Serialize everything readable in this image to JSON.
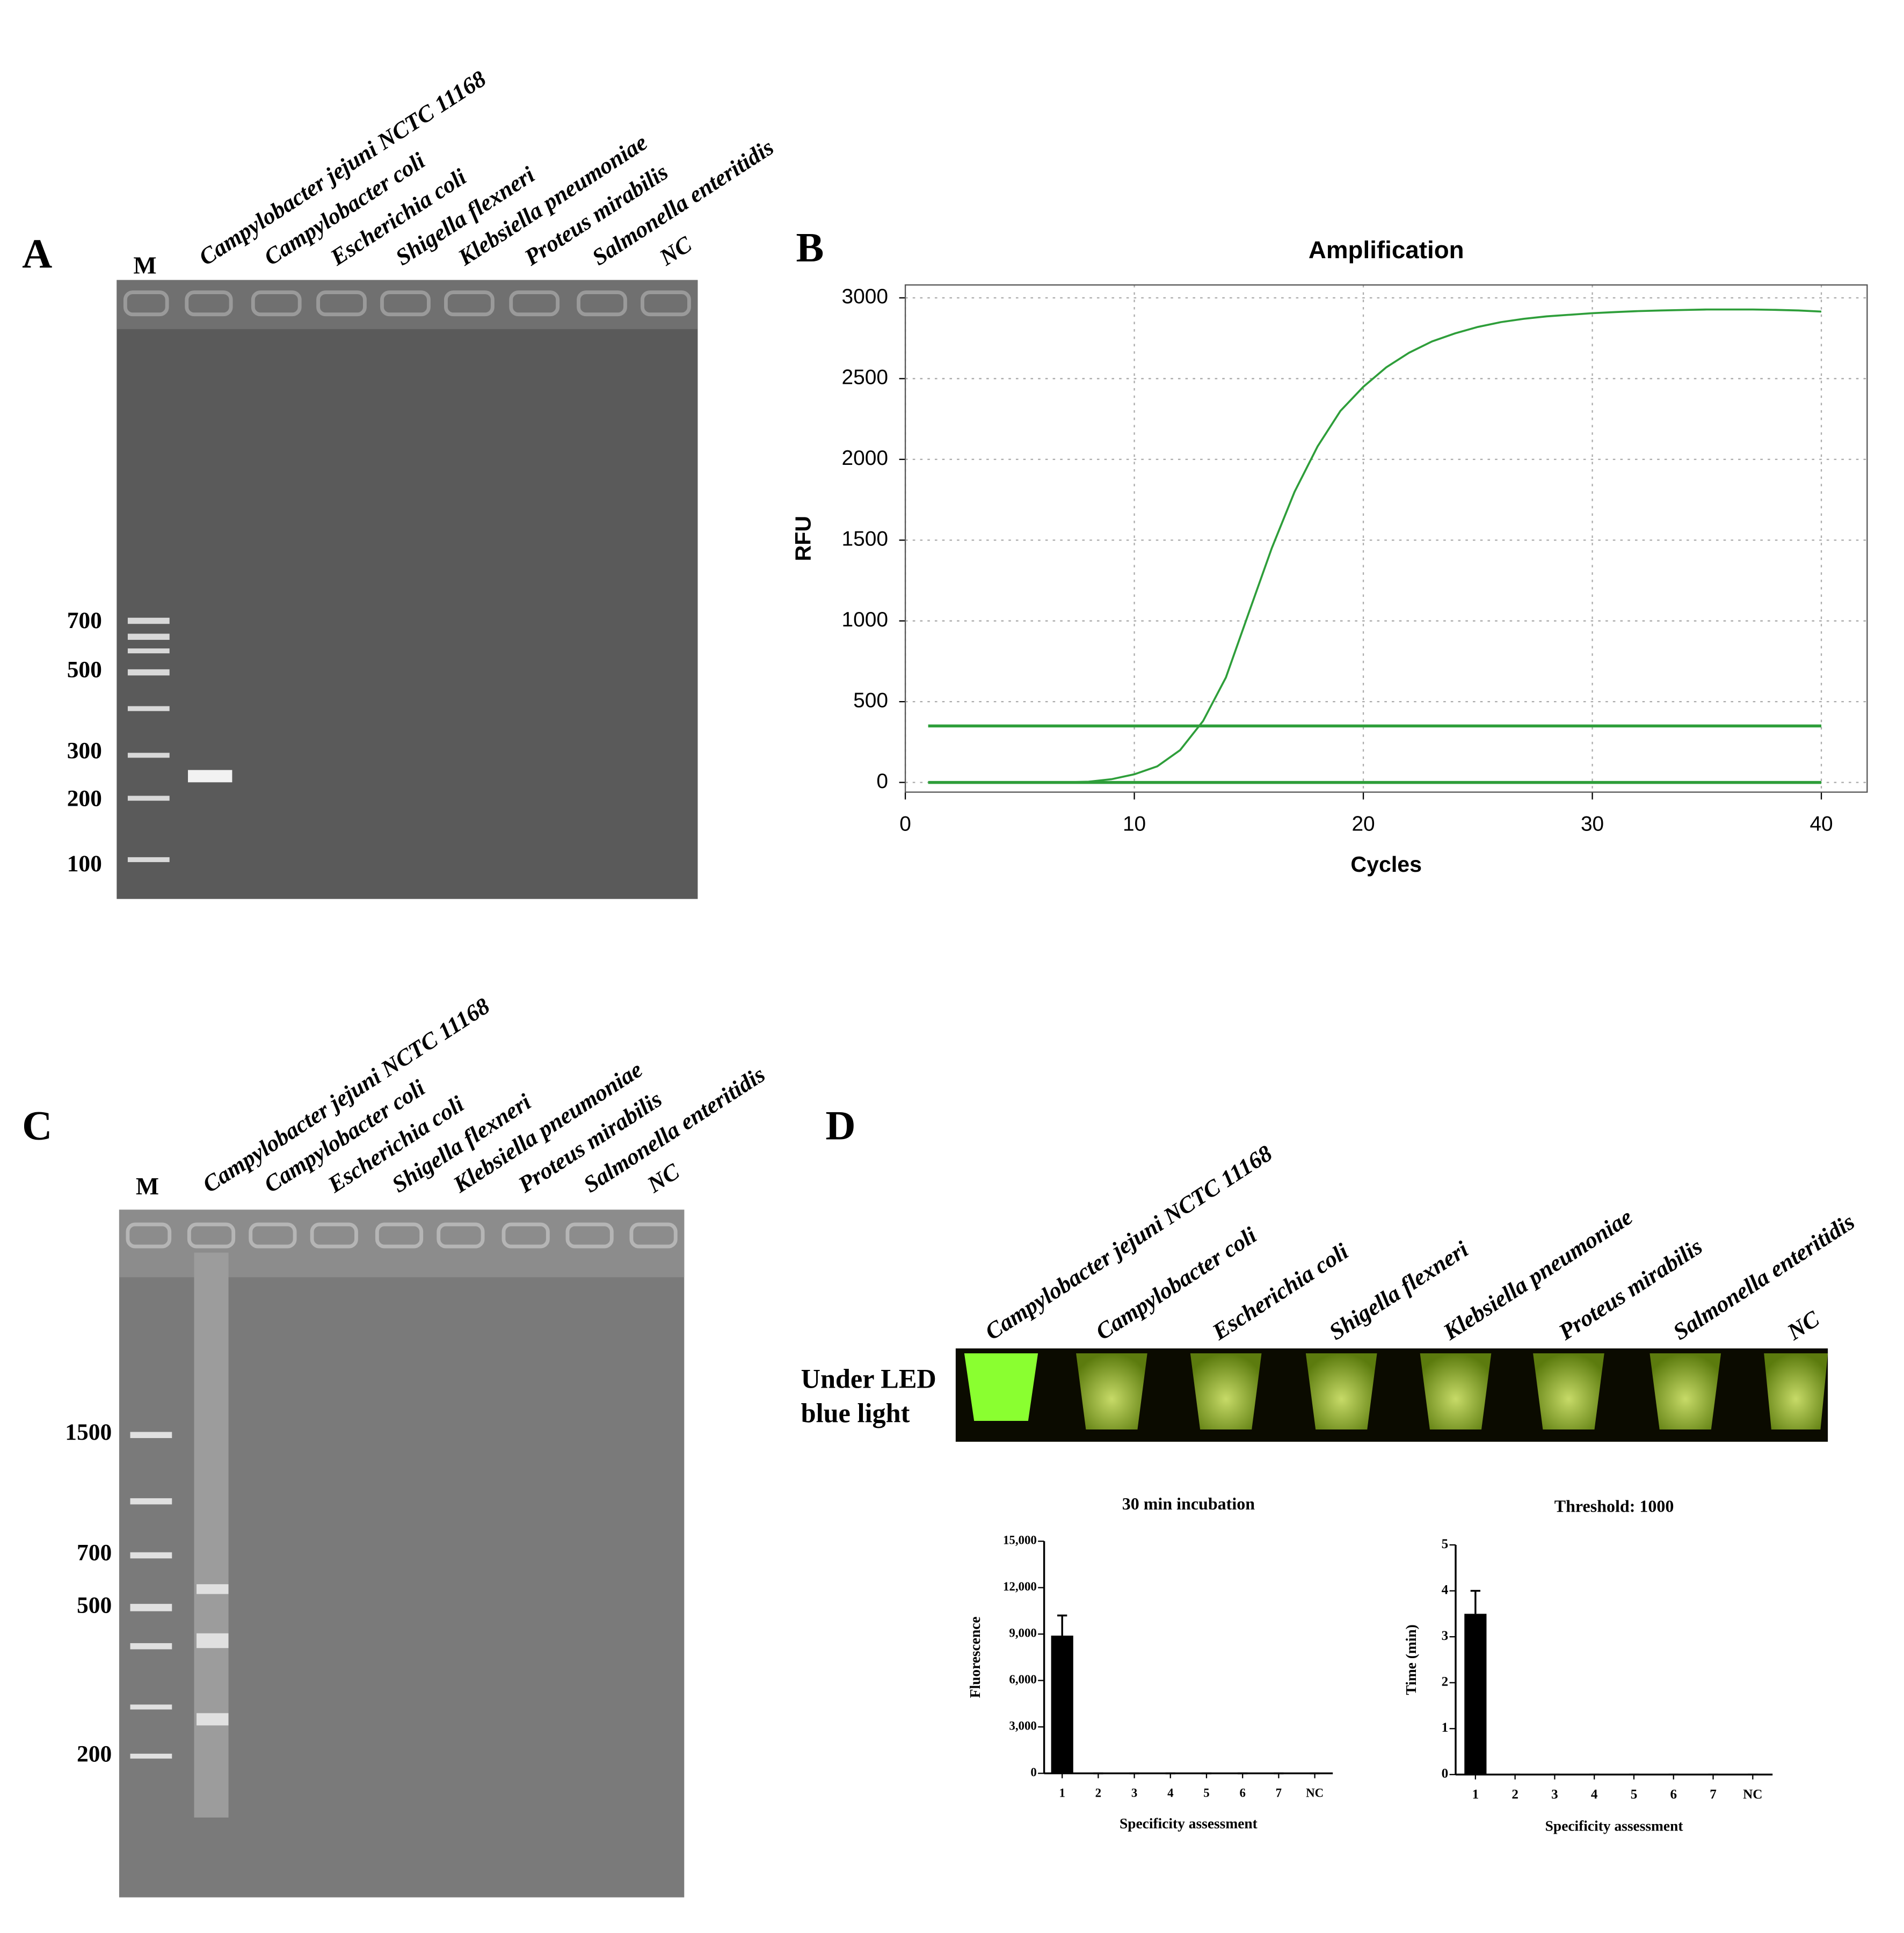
{
  "panels": [
    "A",
    "B",
    "C",
    "D"
  ],
  "gel_a": {
    "marker": "M",
    "lanes": [
      "Campylobacter jejuni NCTC 11168",
      "Campylobacter coli",
      "Escherichia coli",
      "Shigella flexneri",
      "Klebsiella pneumoniae",
      "Proteus mirabilis",
      "Salmonella enteritidis",
      "NC"
    ],
    "sizes": [
      "700",
      "500",
      "300",
      "200",
      "100"
    ]
  },
  "gel_c": {
    "marker": "M",
    "lanes": [
      "Campylobacter jejuni NCTC 11168",
      "Campylobacter coli",
      "Escherichia coli",
      "Shigella flexneri",
      "Klebsiella pneumoniae",
      "Proteus mirabilis",
      "Salmonella enteritidis",
      "NC"
    ],
    "sizes": [
      "1500",
      "700",
      "500",
      "200"
    ]
  },
  "led": {
    "lanes": [
      "Campylobacter jejuni NCTC 11168",
      "Campylobacter coli",
      "Escherichia coli",
      "Shigella flexneri",
      "Klebsiella pneumoniae",
      "Proteus mirabilis",
      "Salmonella enteritidis",
      "NC"
    ],
    "caption": [
      "Under LED",
      "blue light"
    ]
  },
  "chart_data": [
    {
      "type": "line",
      "title": "Amplification",
      "x_label": "Cycles",
      "y_label": "RFU",
      "x": [
        1,
        2,
        3,
        4,
        5,
        6,
        7,
        8,
        9,
        10,
        11,
        12,
        13,
        14,
        15,
        16,
        17,
        18,
        19,
        20,
        21,
        22,
        23,
        24,
        25,
        26,
        27,
        28,
        29,
        30,
        31,
        32,
        33,
        34,
        35,
        36,
        37,
        38,
        39,
        40
      ],
      "series": [
        {
          "color": "#2e9e3a",
          "values": [
            0,
            0,
            0,
            0,
            0,
            0,
            1,
            5,
            20,
            50,
            100,
            200,
            380,
            650,
            1050,
            1450,
            1800,
            2080,
            2300,
            2450,
            2570,
            2660,
            2730,
            2780,
            2820,
            2850,
            2870,
            2885,
            2895,
            2905,
            2912,
            2918,
            2922,
            2925,
            2928,
            2928,
            2928,
            2926,
            2922,
            2915
          ]
        },
        {
          "color": "#2e9e3a",
          "values": [
            350,
            350,
            350,
            350,
            350,
            350,
            350,
            350,
            350,
            350,
            350,
            350,
            350,
            350,
            350,
            350,
            350,
            350,
            350,
            350,
            350,
            350,
            350,
            350,
            350,
            350,
            350,
            350,
            350,
            350,
            350,
            350,
            350,
            350,
            350,
            350,
            350,
            350,
            350,
            350
          ]
        },
        {
          "color": "#2e9e3a",
          "values": [
            0,
            0,
            0,
            0,
            0,
            0,
            0,
            0,
            0,
            0,
            0,
            0,
            0,
            0,
            0,
            0,
            0,
            0,
            0,
            0,
            0,
            0,
            0,
            0,
            0,
            0,
            0,
            0,
            0,
            0,
            0,
            0,
            0,
            0,
            0,
            0,
            0,
            0,
            0,
            0
          ]
        }
      ],
      "xlim": [
        0,
        42
      ],
      "xticks": [
        0,
        10,
        20,
        30,
        40
      ],
      "ylim": [
        -60,
        3080
      ],
      "yticks": [
        0,
        500,
        1000,
        1500,
        2000,
        2500,
        3000
      ],
      "grid": true
    },
    {
      "type": "bar",
      "title": "30 min incubation",
      "x_label": "Specificity  assessment",
      "y_label": "Fluorescence",
      "categories": [
        "1",
        "2",
        "3",
        "4",
        "5",
        "6",
        "7",
        "NC"
      ],
      "values": [
        8900,
        0,
        0,
        0,
        0,
        0,
        0,
        0
      ],
      "errors": [
        1300,
        0,
        0,
        0,
        0,
        0,
        0,
        0
      ],
      "color": "#000000",
      "ylim": [
        0,
        15000
      ],
      "yticks": [
        0,
        {
          "value": 3000,
          "label": "3,000"
        },
        {
          "value": 6000,
          "label": "6,000"
        },
        {
          "value": 9000,
          "label": "9,000"
        },
        {
          "value": 12000,
          "label": "12,000"
        },
        {
          "value": 15000,
          "label": "15,000"
        }
      ],
      "grid": false
    },
    {
      "type": "bar",
      "title": "Threshold: 1000",
      "x_label": "Specificity  assessment",
      "y_label": "Time (min)",
      "categories": [
        "1",
        "2",
        "3",
        "4",
        "5",
        "6",
        "7",
        "NC"
      ],
      "values": [
        3.5,
        0,
        0,
        0,
        0,
        0,
        0,
        0
      ],
      "errors": [
        0.5,
        0,
        0,
        0,
        0,
        0,
        0,
        0
      ],
      "color": "#000000",
      "ylim": [
        0,
        5
      ],
      "yticks": [
        0,
        1,
        2,
        3,
        4,
        5
      ],
      "grid": false
    }
  ]
}
